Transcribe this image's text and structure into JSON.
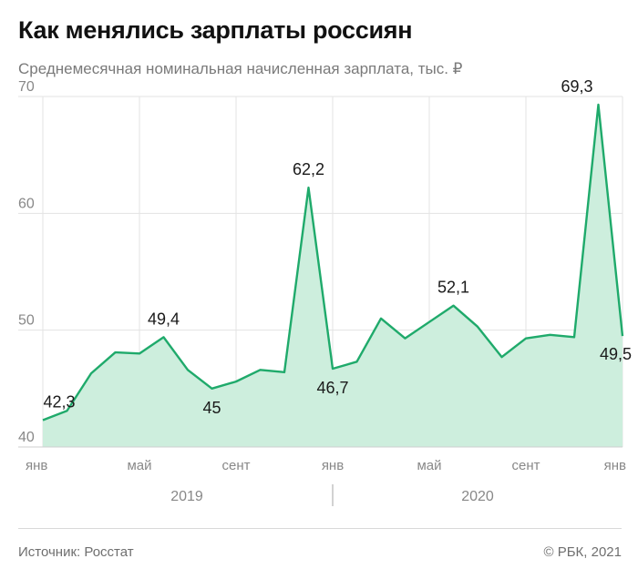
{
  "header": {
    "title": "Как менялись зарплаты россиян",
    "subtitle": "Среднемесячная номинальная начисленная зарплата, тыс. ₽"
  },
  "footer": {
    "source": "Источник: Росстат",
    "copyright": "© РБК, 2021"
  },
  "colors": {
    "line": "#1faa6b",
    "fill": "#cdeedd",
    "grid": "#e3e3e3",
    "text": "#1a1a1a",
    "muted": "#888888"
  },
  "chart_data": {
    "type": "area",
    "x": [
      "2019-01",
      "2019-02",
      "2019-03",
      "2019-04",
      "2019-05",
      "2019-06",
      "2019-07",
      "2019-08",
      "2019-09",
      "2019-10",
      "2019-11",
      "2019-12",
      "2020-01",
      "2020-02",
      "2020-03",
      "2020-04",
      "2020-05",
      "2020-06",
      "2020-07",
      "2020-08",
      "2020-09",
      "2020-10",
      "2020-11",
      "2020-12",
      "2021-01"
    ],
    "values": [
      42.3,
      43.1,
      46.3,
      48.1,
      48.0,
      49.4,
      46.6,
      45.0,
      45.6,
      46.6,
      46.4,
      62.2,
      46.7,
      47.3,
      51.0,
      49.3,
      50.7,
      52.1,
      50.3,
      47.7,
      49.3,
      49.6,
      49.4,
      69.3,
      49.5
    ],
    "ylim": [
      40,
      70
    ],
    "yticks": [
      40,
      50,
      60,
      70
    ],
    "xtick_labels": [
      {
        "index": 0,
        "label": "янв"
      },
      {
        "index": 4,
        "label": "май"
      },
      {
        "index": 8,
        "label": "сент"
      },
      {
        "index": 12,
        "label": "янв"
      },
      {
        "index": 16,
        "label": "май"
      },
      {
        "index": 20,
        "label": "сент"
      },
      {
        "index": 24,
        "label": "янв"
      }
    ],
    "year_labels": [
      {
        "label": "2019"
      },
      {
        "label": "2020"
      }
    ],
    "data_labels": [
      {
        "index": 0,
        "label": "42,3",
        "pos": "above"
      },
      {
        "index": 5,
        "label": "49,4",
        "pos": "above"
      },
      {
        "index": 7,
        "label": "45",
        "pos": "below"
      },
      {
        "index": 11,
        "label": "62,2",
        "pos": "above"
      },
      {
        "index": 12,
        "label": "46,7",
        "pos": "below"
      },
      {
        "index": 17,
        "label": "52,1",
        "pos": "above"
      },
      {
        "index": 23,
        "label": "69,3",
        "pos": "above-left"
      },
      {
        "index": 24,
        "label": "49,5",
        "pos": "below-left"
      }
    ],
    "grid": true
  }
}
